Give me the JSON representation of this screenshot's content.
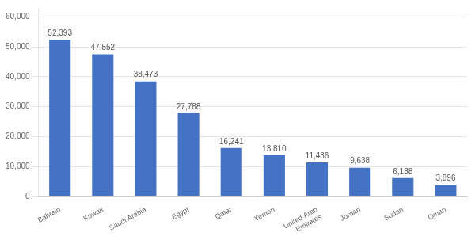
{
  "chart_data": {
    "type": "bar",
    "categories": [
      "Bahrain",
      "Kuwait",
      "Saudi Arabia",
      "Egypt",
      "Qatar",
      "Yemen",
      "United Arab\nEmirates",
      "Jordan",
      "Sudan",
      "Oman"
    ],
    "values": [
      52393,
      47552,
      38473,
      27788,
      16241,
      13810,
      11436,
      9638,
      6188,
      3896
    ],
    "value_labels": [
      "52,393",
      "47,552",
      "38,473",
      "27,788",
      "16,241",
      "13,810",
      "11,436",
      "9,638",
      "6,188",
      "3,896"
    ],
    "data_labels": true,
    "color": "#4472C4",
    "ylim": [
      0,
      63000
    ],
    "yticks": [
      0,
      {
        "value": 10000,
        "label": "10,000"
      },
      {
        "value": 20000,
        "label": "20,000"
      },
      {
        "value": 30000,
        "label": "30,000"
      },
      {
        "value": 40000,
        "label": "40,000"
      },
      {
        "value": 50000,
        "label": "50,000"
      },
      {
        "value": 60000,
        "label": "60,000"
      }
    ],
    "grid": true
  }
}
